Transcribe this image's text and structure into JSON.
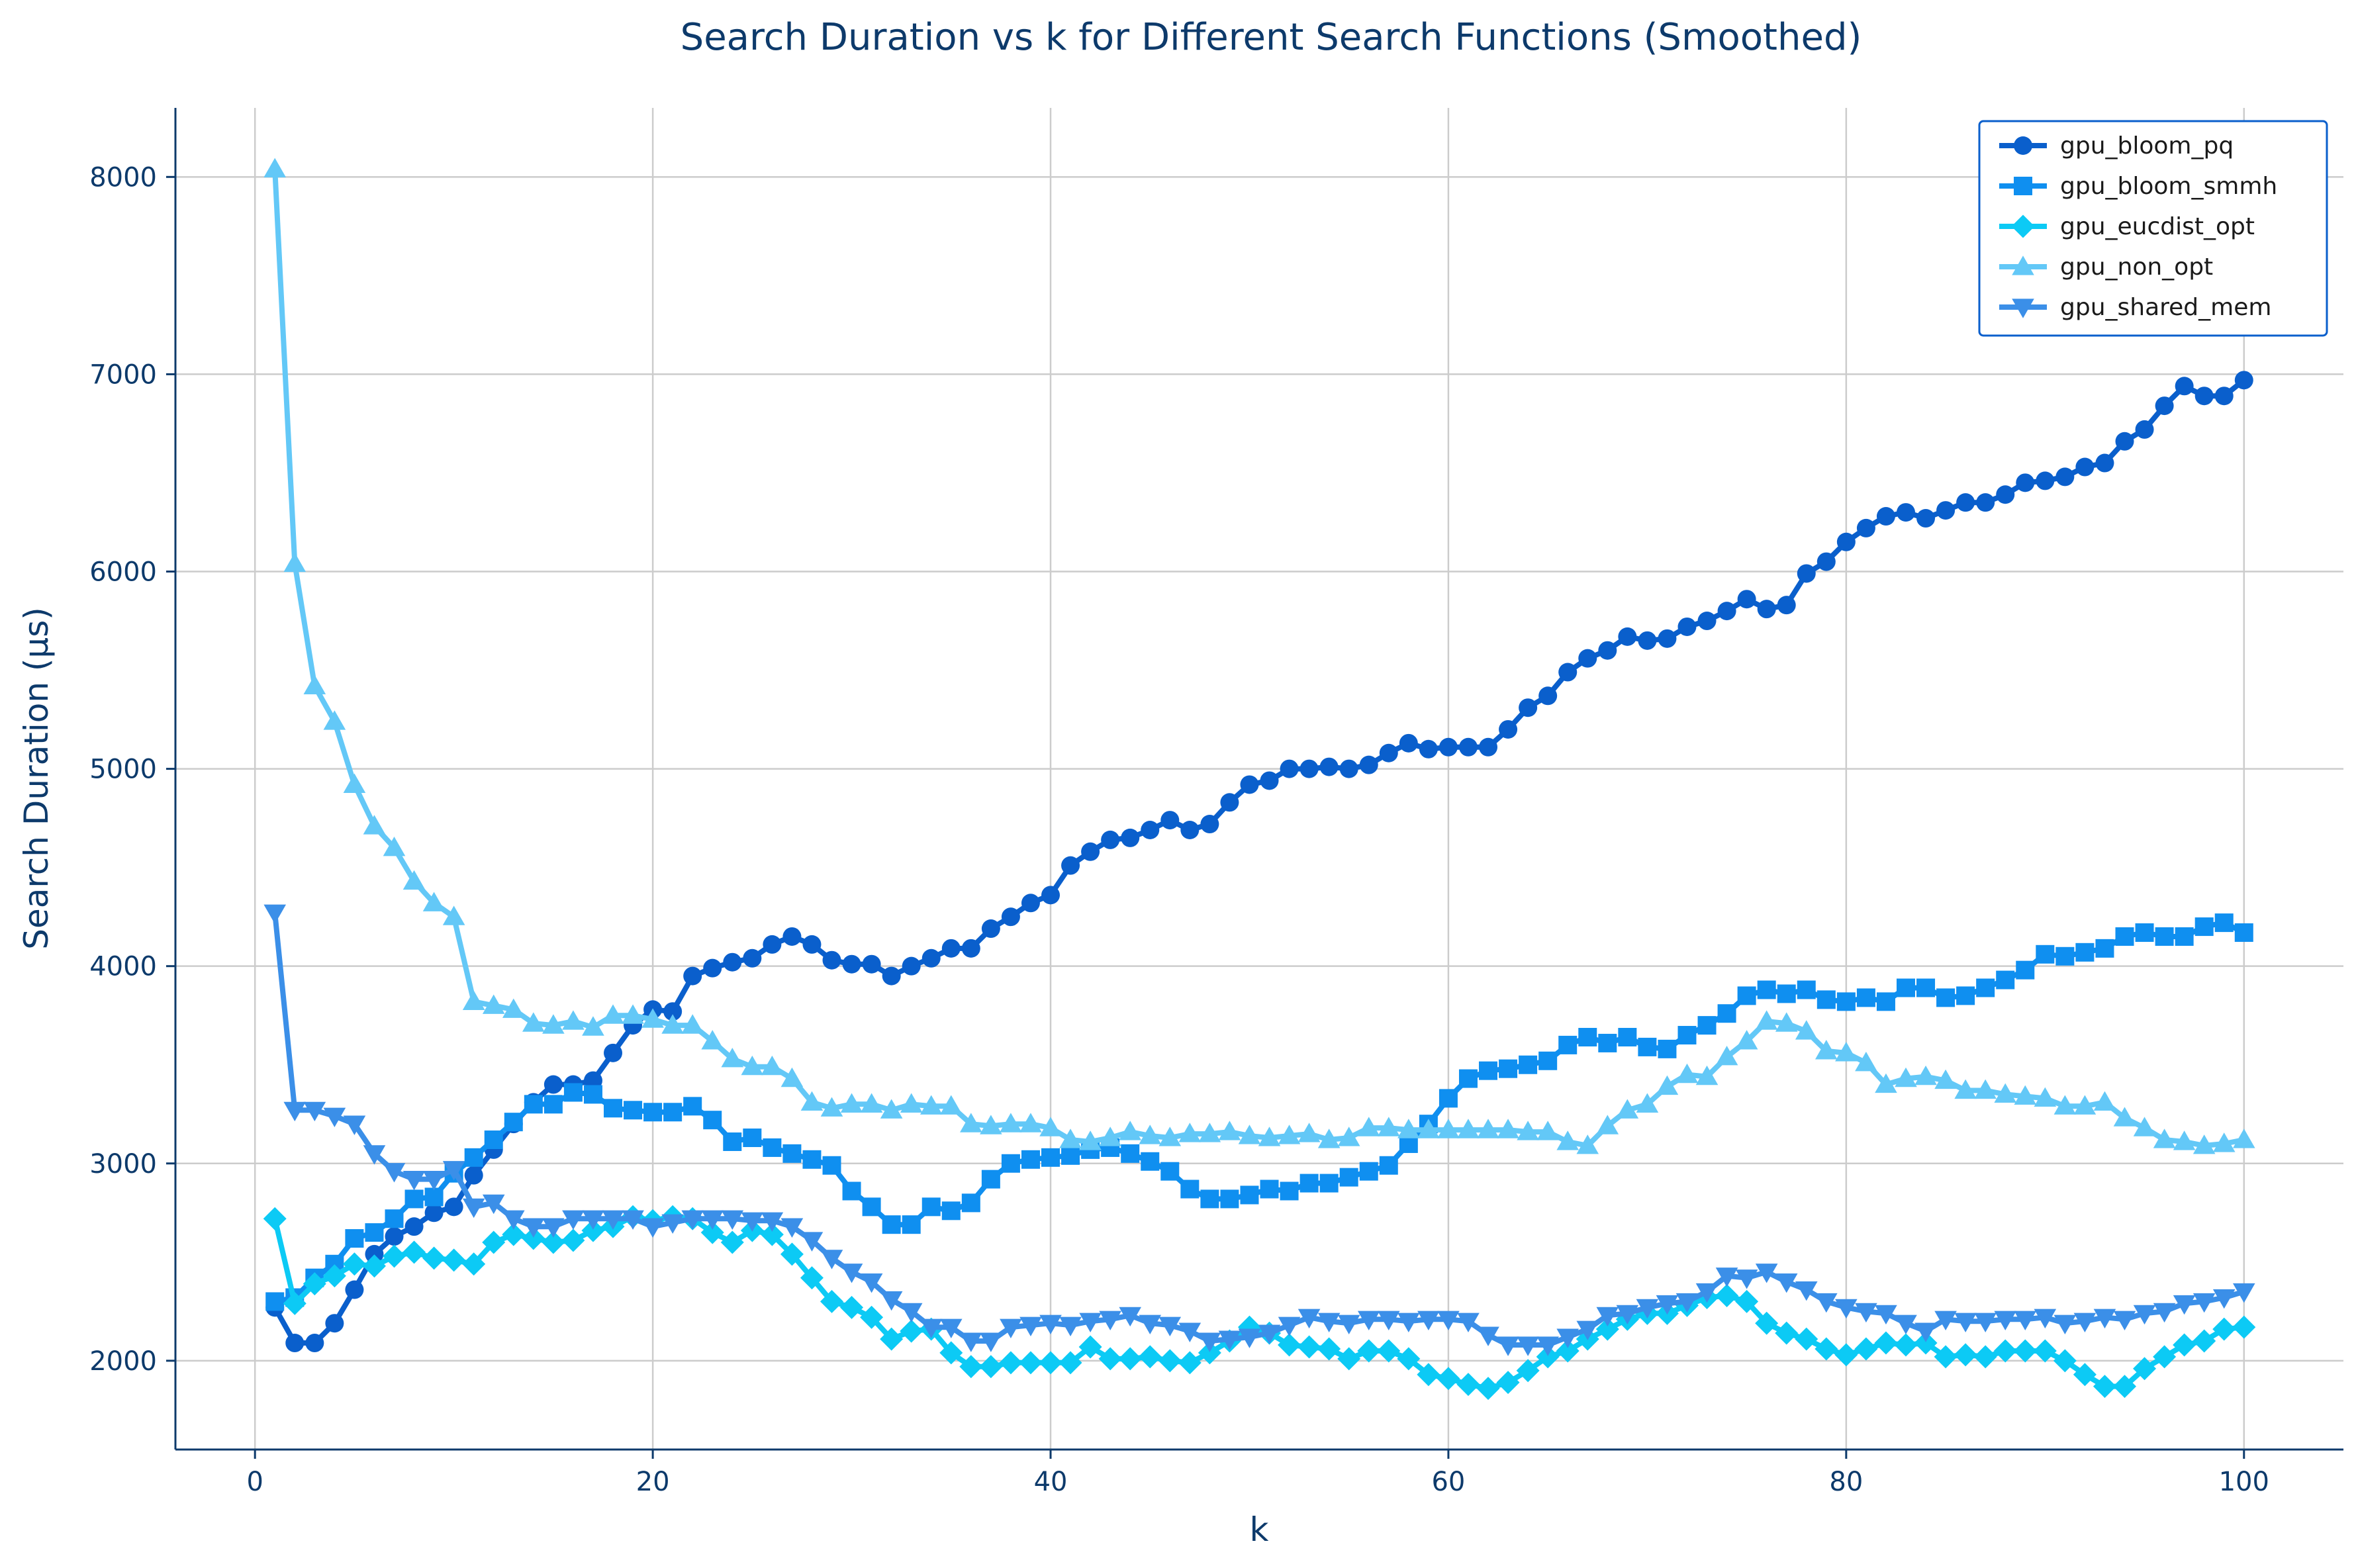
{
  "chart_data": {
    "type": "line",
    "title": "Search Duration vs k for Different Search Functions (Smoothed)",
    "xlabel": "k",
    "ylabel": "Search Duration (μs)",
    "xlim": [
      -4,
      105
    ],
    "ylim": [
      1550,
      8350
    ],
    "x_ticks": [
      0,
      20,
      40,
      60,
      80,
      100
    ],
    "y_ticks": [
      2000,
      3000,
      4000,
      5000,
      6000,
      7000,
      8000
    ],
    "x_tick_labels": [
      "0",
      "20",
      "40",
      "60",
      "80",
      "100"
    ],
    "y_tick_labels": [
      "2000",
      "3000",
      "4000",
      "5000",
      "6000",
      "7000",
      "8000"
    ],
    "grid": true,
    "legend_position": "top-right",
    "x": [
      1,
      2,
      3,
      4,
      5,
      6,
      7,
      8,
      9,
      10,
      11,
      12,
      13,
      14,
      15,
      16,
      17,
      18,
      19,
      20,
      21,
      22,
      23,
      24,
      25,
      26,
      27,
      28,
      29,
      30,
      31,
      32,
      33,
      34,
      35,
      36,
      37,
      38,
      39,
      40,
      41,
      42,
      43,
      44,
      45,
      46,
      47,
      48,
      49,
      50,
      51,
      52,
      53,
      54,
      55,
      56,
      57,
      58,
      59,
      60,
      61,
      62,
      63,
      64,
      65,
      66,
      67,
      68,
      69,
      70,
      71,
      72,
      73,
      74,
      75,
      76,
      77,
      78,
      79,
      80,
      81,
      82,
      83,
      84,
      85,
      86,
      87,
      88,
      89,
      90,
      91,
      92,
      93,
      94,
      95,
      96,
      97,
      98,
      99,
      100
    ],
    "series": [
      {
        "name": "gpu_bloom_pq",
        "color": "#0a5fcc",
        "marker": "circle",
        "values": [
          2270,
          2090,
          2090,
          2190,
          2360,
          2540,
          2630,
          2680,
          2750,
          2780,
          2940,
          3070,
          3200,
          3310,
          3400,
          3400,
          3420,
          3560,
          3700,
          3780,
          3770,
          3950,
          3990,
          4020,
          4040,
          4110,
          4150,
          4110,
          4030,
          4010,
          4010,
          3950,
          4000,
          4040,
          4090,
          4090,
          4190,
          4250,
          4320,
          4360,
          4510,
          4580,
          4640,
          4650,
          4690,
          4740,
          4690,
          4720,
          4830,
          4920,
          4940,
          5000,
          5000,
          5010,
          5000,
          5020,
          5080,
          5130,
          5100,
          5110,
          5110,
          5110,
          5200,
          5310,
          5370,
          5490,
          5560,
          5600,
          5670,
          5650,
          5660,
          5720,
          5750,
          5800,
          5860,
          5810,
          5830,
          5990,
          6050,
          6150,
          6220,
          6280,
          6300,
          6270,
          6310,
          6350,
          6350,
          6390,
          6450,
          6460,
          6480,
          6530,
          6550,
          6660,
          6720,
          6840,
          6940,
          6890,
          6890,
          6970
        ]
      },
      {
        "name": "gpu_bloom_smmh",
        "color": "#0f8ff0",
        "marker": "square",
        "values": [
          2300,
          2320,
          2420,
          2490,
          2620,
          2650,
          2720,
          2820,
          2830,
          2950,
          3030,
          3120,
          3210,
          3300,
          3300,
          3360,
          3350,
          3280,
          3270,
          3260,
          3260,
          3290,
          3220,
          3110,
          3130,
          3080,
          3050,
          3020,
          2990,
          2860,
          2780,
          2690,
          2690,
          2780,
          2760,
          2800,
          2920,
          3000,
          3020,
          3030,
          3040,
          3070,
          3080,
          3050,
          3010,
          2960,
          2870,
          2820,
          2820,
          2840,
          2870,
          2860,
          2900,
          2900,
          2930,
          2960,
          2990,
          3100,
          3200,
          3330,
          3430,
          3470,
          3480,
          3500,
          3520,
          3600,
          3640,
          3610,
          3640,
          3590,
          3580,
          3650,
          3700,
          3760,
          3850,
          3880,
          3860,
          3880,
          3830,
          3820,
          3840,
          3820,
          3890,
          3890,
          3840,
          3850,
          3890,
          3930,
          3980,
          4060,
          4050,
          4070,
          4090,
          4150,
          4170,
          4150,
          4150,
          4200,
          4220,
          4170
        ]
      },
      {
        "name": "gpu_eucdist_opt",
        "color": "#0ccaf5",
        "marker": "diamond",
        "values": [
          2720,
          2290,
          2390,
          2430,
          2490,
          2480,
          2530,
          2550,
          2520,
          2510,
          2490,
          2600,
          2640,
          2620,
          2600,
          2610,
          2660,
          2680,
          2730,
          2710,
          2730,
          2720,
          2650,
          2600,
          2660,
          2640,
          2540,
          2420,
          2300,
          2270,
          2220,
          2110,
          2150,
          2160,
          2040,
          1970,
          1970,
          1990,
          1990,
          1990,
          1990,
          2070,
          2010,
          2010,
          2020,
          2000,
          1990,
          2040,
          2100,
          2170,
          2140,
          2080,
          2070,
          2060,
          2010,
          2050,
          2050,
          2010,
          1930,
          1910,
          1880,
          1860,
          1890,
          1950,
          2020,
          2050,
          2110,
          2160,
          2210,
          2240,
          2240,
          2280,
          2320,
          2330,
          2300,
          2190,
          2140,
          2110,
          2060,
          2030,
          2060,
          2090,
          2080,
          2090,
          2020,
          2030,
          2020,
          2050,
          2050,
          2050,
          2000,
          1930,
          1870,
          1870,
          1960,
          2020,
          2080,
          2100,
          2160,
          2170
        ]
      },
      {
        "name": "gpu_non_opt",
        "color": "#63c8f7",
        "marker": "triangle-up",
        "values": [
          8040,
          6040,
          5420,
          5240,
          4920,
          4710,
          4600,
          4430,
          4320,
          4250,
          3820,
          3800,
          3780,
          3710,
          3700,
          3720,
          3690,
          3750,
          3750,
          3730,
          3700,
          3700,
          3620,
          3530,
          3490,
          3490,
          3430,
          3310,
          3280,
          3300,
          3300,
          3270,
          3300,
          3290,
          3290,
          3200,
          3190,
          3200,
          3200,
          3180,
          3120,
          3110,
          3130,
          3160,
          3140,
          3130,
          3150,
          3150,
          3160,
          3140,
          3130,
          3140,
          3150,
          3120,
          3130,
          3180,
          3180,
          3170,
          3170,
          3170,
          3170,
          3170,
          3170,
          3160,
          3160,
          3110,
          3090,
          3190,
          3270,
          3300,
          3390,
          3450,
          3440,
          3540,
          3620,
          3720,
          3710,
          3670,
          3570,
          3560,
          3510,
          3400,
          3430,
          3440,
          3420,
          3370,
          3370,
          3350,
          3340,
          3330,
          3290,
          3290,
          3310,
          3230,
          3180,
          3120,
          3110,
          3090,
          3100,
          3120
        ]
      },
      {
        "name": "gpu_shared_mem",
        "color": "#3b8fe8",
        "marker": "triangle-down",
        "values": [
          4270,
          3270,
          3270,
          3240,
          3200,
          3050,
          2960,
          2920,
          2920,
          2970,
          2780,
          2800,
          2720,
          2680,
          2680,
          2720,
          2720,
          2720,
          2720,
          2680,
          2700,
          2720,
          2720,
          2720,
          2710,
          2710,
          2680,
          2610,
          2520,
          2450,
          2400,
          2310,
          2250,
          2170,
          2170,
          2100,
          2100,
          2170,
          2180,
          2190,
          2180,
          2200,
          2210,
          2230,
          2190,
          2180,
          2150,
          2100,
          2110,
          2120,
          2140,
          2180,
          2220,
          2200,
          2190,
          2210,
          2210,
          2200,
          2210,
          2210,
          2200,
          2130,
          2080,
          2080,
          2080,
          2120,
          2160,
          2230,
          2240,
          2270,
          2290,
          2300,
          2350,
          2430,
          2420,
          2450,
          2400,
          2360,
          2300,
          2270,
          2250,
          2240,
          2190,
          2150,
          2210,
          2200,
          2200,
          2210,
          2210,
          2220,
          2190,
          2200,
          2220,
          2210,
          2240,
          2250,
          2290,
          2300,
          2320,
          2350
        ]
      }
    ]
  }
}
